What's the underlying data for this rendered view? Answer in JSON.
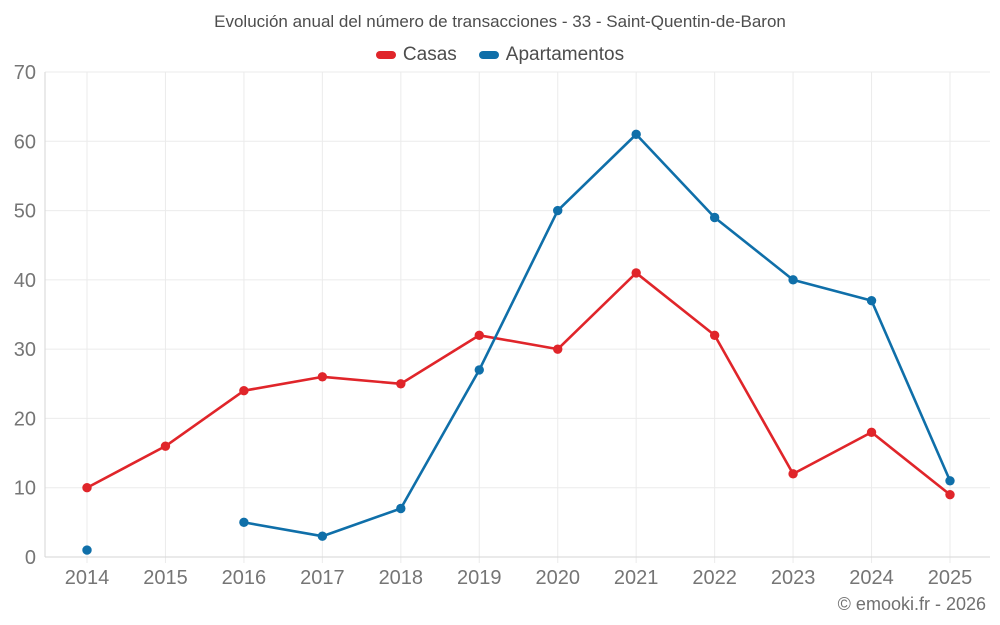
{
  "chart_data": {
    "type": "line",
    "title": "Evolución anual del número de transacciones - 33 - Saint-Quentin-de-Baron",
    "categories": [
      "2014",
      "2015",
      "2016",
      "2017",
      "2018",
      "2019",
      "2020",
      "2021",
      "2022",
      "2023",
      "2024",
      "2025"
    ],
    "series": [
      {
        "name": "Casas",
        "color": "#e0252a",
        "values": [
          10,
          16,
          24,
          26,
          25,
          32,
          30,
          41,
          32,
          12,
          18,
          9
        ]
      },
      {
        "name": "Apartamentos",
        "color": "#0f6fa9",
        "values": [
          1,
          null,
          5,
          3,
          7,
          27,
          50,
          61,
          49,
          40,
          37,
          11
        ]
      }
    ],
    "ylim": [
      0,
      70
    ],
    "yticks": [
      0,
      10,
      20,
      30,
      40,
      50,
      60,
      70
    ],
    "grid": true,
    "legend_position": "top"
  },
  "footer": {
    "copyright": "© emooki.fr - 2026"
  },
  "colors": {
    "grid": "#ebebeb",
    "axis": "#d6d6d6",
    "tick_label": "#757575"
  }
}
